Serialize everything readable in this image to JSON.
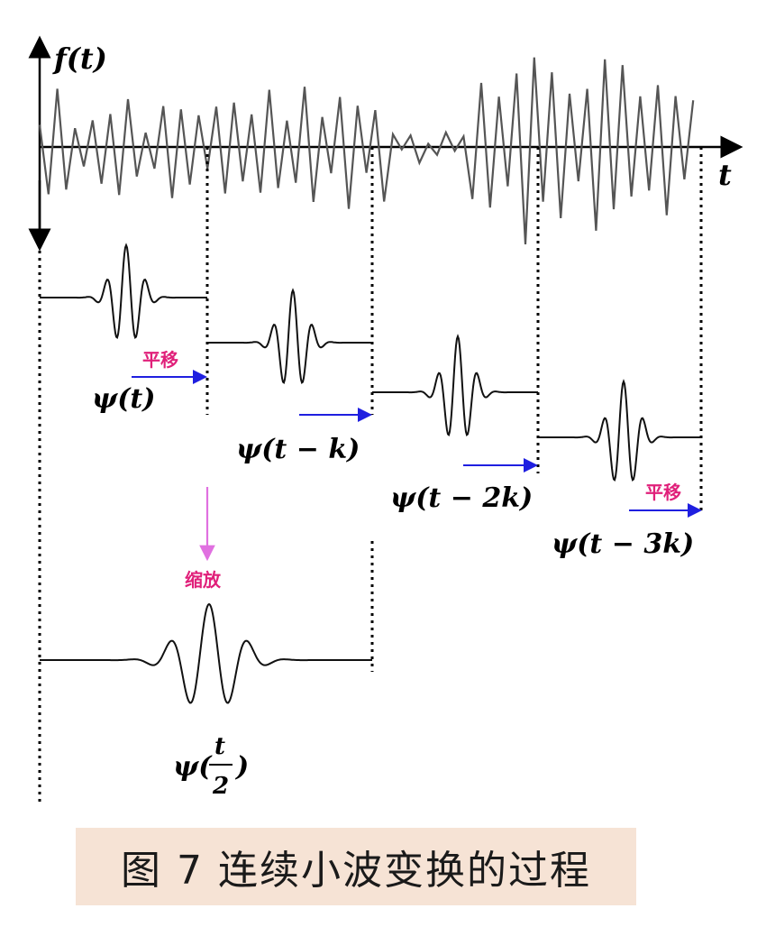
{
  "signal": {
    "y_axis_label": "f(t)",
    "x_axis_label": "t"
  },
  "wavelets": [
    {
      "label": "ψ(t)"
    },
    {
      "label": "ψ(t − k)"
    },
    {
      "label": "ψ(t − 2k)"
    },
    {
      "label": "ψ(t − 3k)"
    }
  ],
  "scaled_wavelet": {
    "label_prefix": "ψ(",
    "numerator": "t",
    "denominator": "2",
    "label_suffix": ")"
  },
  "annotations": {
    "translate_label": "平移",
    "scale_label": "缩放"
  },
  "caption": "图 7  连续小波变换的过程",
  "colors": {
    "translate_arrow": "#1f1fe0",
    "scale_arrow": "#e070e0",
    "annotation_text": "#e0207a",
    "signal": "#555555",
    "caption_bg": "#f6e3d5"
  }
}
